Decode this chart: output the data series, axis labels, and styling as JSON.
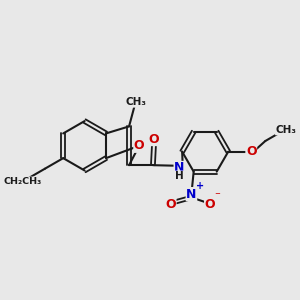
{
  "background_color": "#e8e8e8",
  "bond_color": "#1a1a1a",
  "atom_colors": {
    "O": "#cc0000",
    "N": "#0000cc",
    "C": "#1a1a1a",
    "H": "#1a1a1a"
  },
  "figsize": [
    3.0,
    3.0
  ],
  "dpi": 100,
  "xlim": [
    0,
    10
  ],
  "ylim": [
    0,
    10
  ]
}
